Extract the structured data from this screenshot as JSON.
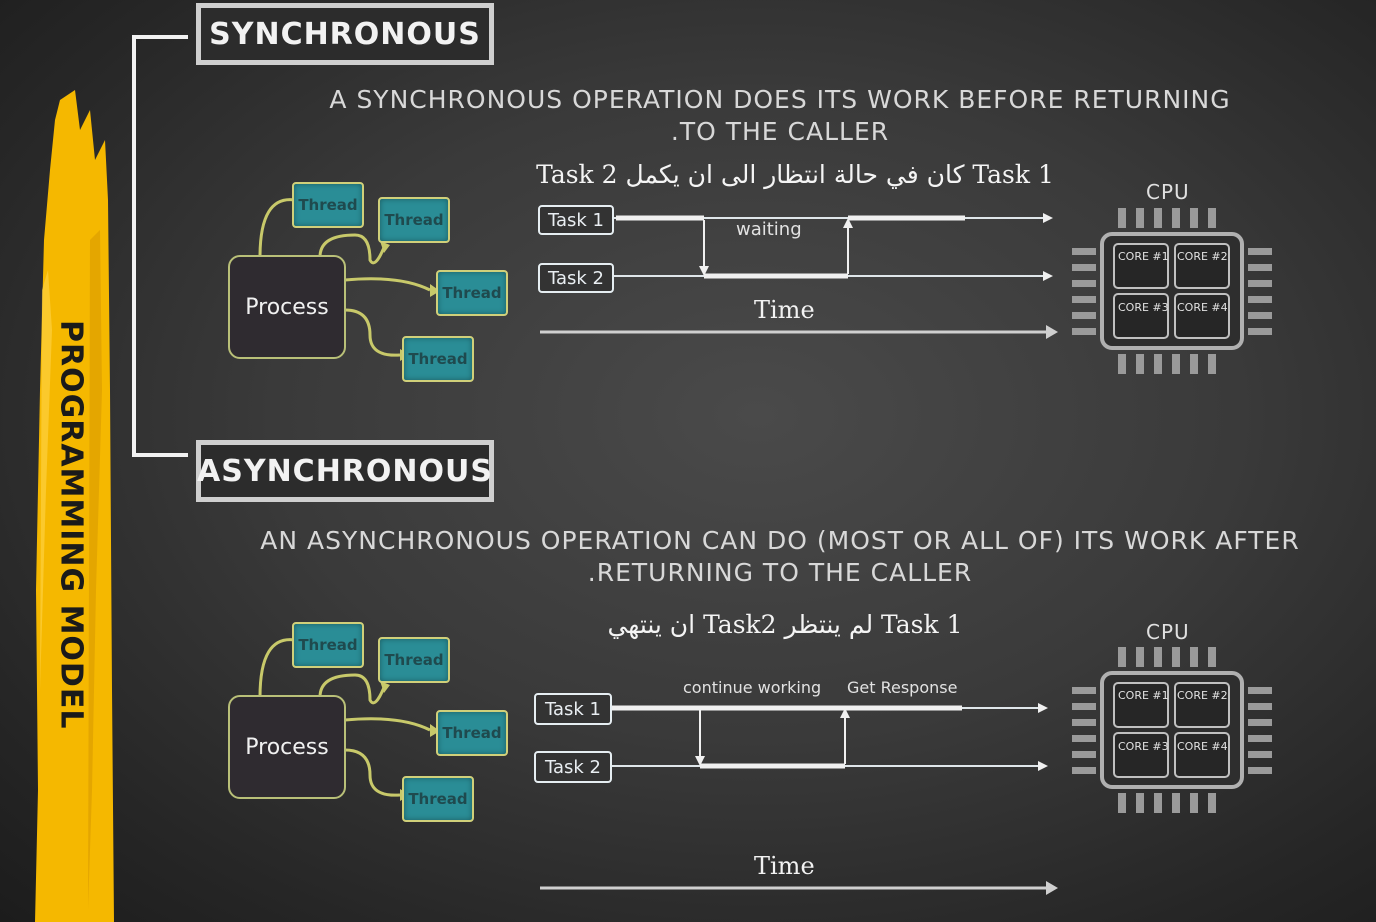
{
  "side_label": "PROGRAMMING MODEL",
  "sync": {
    "title": "SYNCHRONOUS",
    "description_line1": "A SYNCHRONOUS OPERATION DOES ITS WORK BEFORE RETURNING",
    "description_line2": ".TO THE CALLER",
    "arabic_caption": "Task 1 كان في حالة انتظار الى ان يكمل Task 2",
    "process_label": "Process",
    "threads": [
      "Thread",
      "Thread",
      "Thread",
      "Thread"
    ],
    "task1": "Task 1",
    "task2": "Task 2",
    "waiting_label": "waiting",
    "time_label": "Time",
    "cpu_label": "CPU",
    "cores": [
      "CORE #1",
      "CORE #2",
      "CORE #3",
      "CORE #4"
    ]
  },
  "async": {
    "title": "ASYNCHRONOUS",
    "description_line1": "AN ASYNCHRONOUS OPERATION CAN DO (MOST OR ALL OF) ITS WORK AFTER",
    "description_line2": ".RETURNING TO THE CALLER",
    "arabic_caption": "Task 1 لم ينتظر Task2 ان ينتهي",
    "process_label": "Process",
    "threads": [
      "Thread",
      "Thread",
      "Thread",
      "Thread"
    ],
    "task1": "Task 1",
    "task2": "Task 2",
    "continue_label": "continue working",
    "response_label": "Get Response",
    "time_label": "Time",
    "cpu_label": "CPU",
    "cores": [
      "CORE #1",
      "CORE #2",
      "CORE #3",
      "CORE #4"
    ]
  },
  "colors": {
    "accent_yellow": "#f5b800",
    "thread_teal": "#2a8d96",
    "chalkboard": "#3a3a3a"
  }
}
